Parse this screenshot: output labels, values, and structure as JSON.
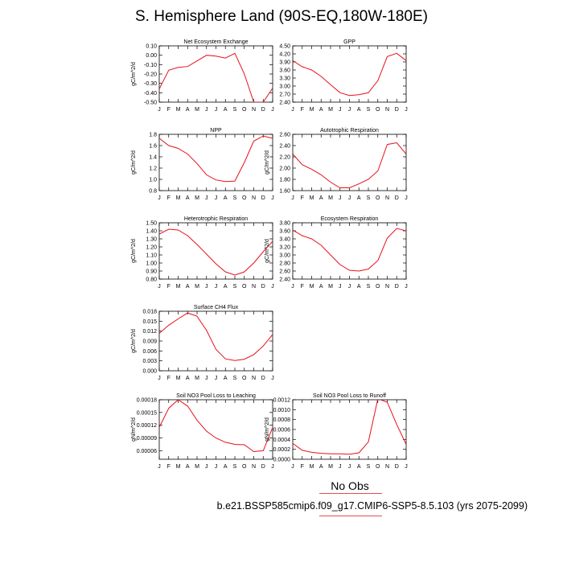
{
  "title": "S. Hemisphere Land (90S-EQ,180W-180E)",
  "legend": {
    "no_obs": "No Obs",
    "case": "b.e21.BSSP585cmip6.f09_g17.CMIP6-SSP5-8.5.103 (yrs 2075-2099)"
  },
  "colors": {
    "line": "#e8101a",
    "axis": "#000000"
  },
  "chart_data": [
    {
      "type": "line",
      "title": "Net Ecosystem Exchange",
      "ylabel": "gC/m^2/d",
      "xlabel": "",
      "categories": [
        "J",
        "F",
        "M",
        "A",
        "M",
        "J",
        "J",
        "A",
        "S",
        "O",
        "N",
        "D",
        "J"
      ],
      "yticks": [
        "0.10",
        "0.00",
        "-0.10",
        "-0.20",
        "-0.30",
        "-0.40",
        "-0.50"
      ],
      "ylim": [
        -0.5,
        0.1
      ],
      "values": [
        -0.36,
        -0.16,
        -0.13,
        -0.12,
        -0.06,
        0.0,
        -0.01,
        -0.03,
        0.02,
        -0.2,
        -0.5,
        -0.5,
        -0.35
      ]
    },
    {
      "type": "line",
      "title": "GPP",
      "ylabel": "",
      "xlabel": "",
      "categories": [
        "J",
        "F",
        "M",
        "A",
        "M",
        "J",
        "J",
        "A",
        "S",
        "O",
        "N",
        "D",
        "J"
      ],
      "yticks": [
        "4.50",
        "4.20",
        "3.90",
        "3.60",
        "3.30",
        "3.00",
        "2.70",
        "2.40"
      ],
      "ylim": [
        2.4,
        4.5
      ],
      "values": [
        3.95,
        3.72,
        3.6,
        3.36,
        3.05,
        2.75,
        2.65,
        2.68,
        2.75,
        3.2,
        4.1,
        4.22,
        3.95
      ]
    },
    {
      "type": "line",
      "title": "NPP",
      "ylabel": "gC/m^2/d",
      "xlabel": "",
      "categories": [
        "J",
        "F",
        "M",
        "A",
        "M",
        "J",
        "J",
        "A",
        "S",
        "O",
        "N",
        "D",
        "J"
      ],
      "yticks": [
        "1.8",
        "1.6",
        "1.4",
        "1.2",
        "1.0",
        "0.8"
      ],
      "ylim": [
        0.8,
        1.8
      ],
      "values": [
        1.73,
        1.6,
        1.55,
        1.45,
        1.28,
        1.08,
        0.99,
        0.96,
        0.97,
        1.3,
        1.68,
        1.77,
        1.73
      ]
    },
    {
      "type": "line",
      "title": "Autotrophic Respiration",
      "ylabel": "gC/m^2/d",
      "xlabel": "",
      "categories": [
        "J",
        "F",
        "M",
        "A",
        "M",
        "J",
        "J",
        "A",
        "S",
        "O",
        "N",
        "D",
        "J"
      ],
      "yticks": [
        "2.60",
        "2.40",
        "2.20",
        "2.00",
        "1.80",
        "1.60"
      ],
      "ylim": [
        1.6,
        2.6
      ],
      "values": [
        2.25,
        2.06,
        1.98,
        1.88,
        1.75,
        1.65,
        1.65,
        1.72,
        1.8,
        1.95,
        2.42,
        2.45,
        2.25
      ]
    },
    {
      "type": "line",
      "title": "Heterotrophic Respiration",
      "ylabel": "gC/m^2/d",
      "xlabel": "",
      "categories": [
        "J",
        "F",
        "M",
        "A",
        "M",
        "J",
        "J",
        "A",
        "S",
        "O",
        "N",
        "D",
        "J"
      ],
      "yticks": [
        "1.50",
        "1.40",
        "1.30",
        "1.20",
        "1.10",
        "1.00",
        "0.90",
        "0.80"
      ],
      "ylim": [
        0.8,
        1.5
      ],
      "values": [
        1.36,
        1.42,
        1.41,
        1.34,
        1.23,
        1.11,
        0.99,
        0.89,
        0.85,
        0.89,
        1.0,
        1.14,
        1.27
      ]
    },
    {
      "type": "line",
      "title": "Ecosystem Respiration",
      "ylabel": "gC/m^2/d",
      "xlabel": "",
      "categories": [
        "J",
        "F",
        "M",
        "A",
        "M",
        "J",
        "J",
        "A",
        "S",
        "O",
        "N",
        "D",
        "J"
      ],
      "yticks": [
        "3.80",
        "3.60",
        "3.40",
        "3.20",
        "3.00",
        "2.80",
        "2.60",
        "2.40"
      ],
      "ylim": [
        2.4,
        3.8
      ],
      "values": [
        3.62,
        3.48,
        3.4,
        3.24,
        3.0,
        2.76,
        2.62,
        2.6,
        2.65,
        2.86,
        3.42,
        3.66,
        3.6
      ]
    },
    {
      "type": "line",
      "title": "Surface CH4 Flux",
      "ylabel": "gC/m^2/d",
      "xlabel": "",
      "categories": [
        "J",
        "F",
        "M",
        "A",
        "M",
        "J",
        "J",
        "A",
        "S",
        "O",
        "N",
        "D",
        "J"
      ],
      "yticks": [
        "0.018",
        "0.015",
        "0.012",
        "0.009",
        "0.006",
        "0.003",
        "0.000"
      ],
      "ylim": [
        0,
        0.018
      ],
      "values": [
        0.0113,
        0.0138,
        0.0157,
        0.0175,
        0.0165,
        0.0122,
        0.0065,
        0.0036,
        0.0031,
        0.0035,
        0.0049,
        0.0075,
        0.011
      ]
    },
    {
      "type": "line",
      "title": "Soil NO3 Pool Loss to Leaching",
      "ylabel": "gN/m^2/d",
      "xlabel": "",
      "categories": [
        "J",
        "F",
        "M",
        "A",
        "M",
        "J",
        "J",
        "A",
        "S",
        "O",
        "N",
        "D",
        "J"
      ],
      "yticks": [
        "0.00018",
        "0.00015",
        "0.00012",
        "0.00009",
        "0.00006"
      ],
      "ylim": [
        4e-05,
        0.00018
      ],
      "values": [
        0.000115,
        0.00016,
        0.00018,
        0.000165,
        0.000132,
        0.000106,
        9e-05,
        8e-05,
        7.5e-05,
        7.4e-05,
        5.8e-05,
        6e-05,
        0.000115
      ]
    },
    {
      "type": "line",
      "title": "Soil NO3 Pool Loss to Runoff",
      "ylabel": "gN/m^2/d",
      "xlabel": "",
      "categories": [
        "J",
        "F",
        "M",
        "A",
        "M",
        "J",
        "J",
        "A",
        "S",
        "O",
        "N",
        "D",
        "J"
      ],
      "yticks": [
        "0.0012",
        "0.0010",
        "0.0008",
        "0.0006",
        "0.0004",
        "0.0002",
        "0.0000"
      ],
      "ylim": [
        0,
        0.0012
      ],
      "values": [
        0.00032,
        0.00018,
        0.00014,
        0.00012,
        0.00011,
        0.00011,
        0.0001,
        0.00013,
        0.00035,
        0.00122,
        0.00115,
        0.0007,
        0.0003
      ]
    }
  ]
}
